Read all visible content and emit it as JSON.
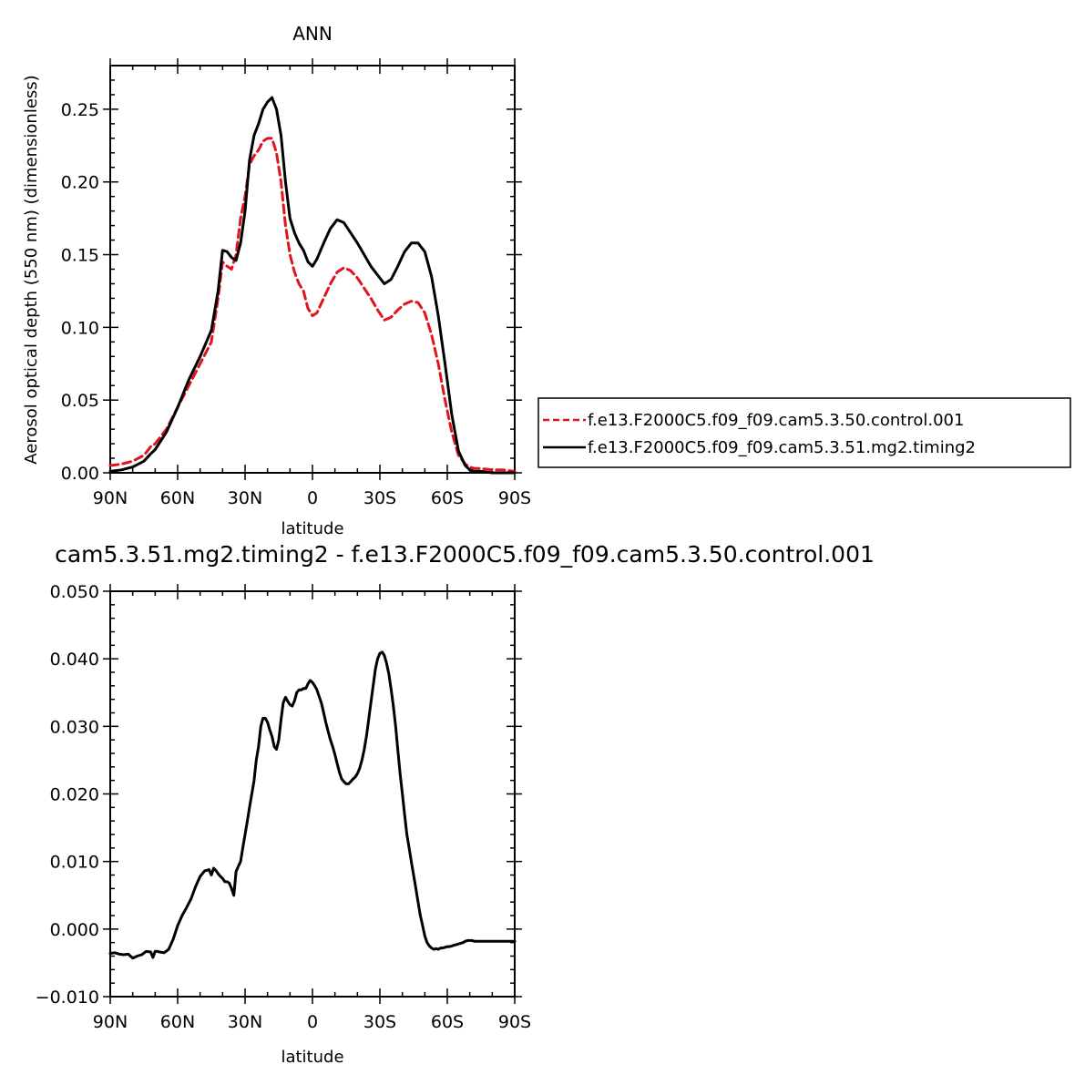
{
  "chart_data": [
    {
      "type": "line",
      "title": "ANN",
      "xlabel": "latitude",
      "ylabel": "Aerosol optical depth (550 nm) (dimensionless)",
      "xlim": [
        90,
        -90
      ],
      "ylim": [
        0.0,
        0.28
      ],
      "xticks": [
        {
          "value": 90,
          "label": "90N"
        },
        {
          "value": 60,
          "label": "60N"
        },
        {
          "value": 30,
          "label": "30N"
        },
        {
          "value": 0,
          "label": "0"
        },
        {
          "value": -30,
          "label": "30S"
        },
        {
          "value": -60,
          "label": "60S"
        },
        {
          "value": -90,
          "label": "90S"
        }
      ],
      "yticks": [
        {
          "value": 0.0,
          "label": "0.00"
        },
        {
          "value": 0.05,
          "label": "0.05"
        },
        {
          "value": 0.1,
          "label": "0.10"
        },
        {
          "value": 0.15,
          "label": "0.15"
        },
        {
          "value": 0.2,
          "label": "0.20"
        },
        {
          "value": 0.25,
          "label": "0.25"
        }
      ],
      "legend_position": "right",
      "series": [
        {
          "name": "f.e13.F2000C5.f09_f09.cam5.3.50.control.001",
          "color": "#e0141e",
          "style": "dashed",
          "x": [
            90,
            85,
            80,
            75,
            72,
            70,
            65,
            60,
            55,
            50,
            45,
            42,
            40,
            38,
            36,
            34,
            32,
            30,
            28,
            26,
            24,
            22,
            20,
            18,
            16,
            14,
            12,
            10,
            8,
            6,
            4,
            2,
            0,
            -2,
            -5,
            -8,
            -11,
            -14,
            -17,
            -20,
            -23,
            -26,
            -29,
            -32,
            -35,
            -38,
            -41,
            -44,
            -47,
            -50,
            -53,
            -56,
            -59,
            -62,
            -65,
            -68,
            -70,
            -72,
            -75,
            -80,
            -85,
            -90
          ],
          "y": [
            0.005,
            0.006,
            0.008,
            0.012,
            0.018,
            0.02,
            0.03,
            0.045,
            0.06,
            0.075,
            0.09,
            0.12,
            0.145,
            0.142,
            0.14,
            0.15,
            0.175,
            0.19,
            0.212,
            0.218,
            0.222,
            0.228,
            0.23,
            0.23,
            0.22,
            0.2,
            0.17,
            0.15,
            0.138,
            0.13,
            0.125,
            0.113,
            0.108,
            0.11,
            0.12,
            0.13,
            0.138,
            0.141,
            0.139,
            0.134,
            0.127,
            0.12,
            0.112,
            0.105,
            0.107,
            0.112,
            0.116,
            0.118,
            0.117,
            0.11,
            0.095,
            0.075,
            0.05,
            0.028,
            0.012,
            0.006,
            0.004,
            0.003,
            0.003,
            0.002,
            0.002,
            0.001
          ]
        },
        {
          "name": "f.e13.F2000C5.f09_f09.cam5.3.51.mg2.timing2",
          "color": "#000000",
          "style": "solid",
          "x": [
            90,
            85,
            80,
            75,
            72,
            70,
            65,
            60,
            55,
            50,
            45,
            42,
            40,
            38,
            36,
            34,
            32,
            30,
            28,
            26,
            24,
            22,
            20,
            18,
            16,
            14,
            12,
            10,
            8,
            6,
            4,
            2,
            0,
            -2,
            -5,
            -8,
            -11,
            -14,
            -17,
            -20,
            -23,
            -26,
            -29,
            -32,
            -35,
            -38,
            -41,
            -44,
            -47,
            -50,
            -53,
            -56,
            -59,
            -62,
            -65,
            -68,
            -70,
            -72,
            -75,
            -80,
            -85,
            -90
          ],
          "y": [
            0.001,
            0.002,
            0.004,
            0.008,
            0.013,
            0.016,
            0.028,
            0.045,
            0.064,
            0.08,
            0.098,
            0.125,
            0.153,
            0.152,
            0.148,
            0.146,
            0.158,
            0.18,
            0.215,
            0.232,
            0.24,
            0.25,
            0.255,
            0.258,
            0.25,
            0.232,
            0.2,
            0.175,
            0.165,
            0.158,
            0.153,
            0.145,
            0.142,
            0.147,
            0.158,
            0.168,
            0.174,
            0.172,
            0.165,
            0.158,
            0.15,
            0.142,
            0.136,
            0.13,
            0.133,
            0.142,
            0.152,
            0.158,
            0.158,
            0.152,
            0.135,
            0.108,
            0.075,
            0.04,
            0.015,
            0.005,
            0.002,
            0.001,
            0.001,
            0.0,
            0.0,
            0.0
          ]
        }
      ]
    },
    {
      "type": "line",
      "title": "cam5.3.51.mg2.timing2 - f.e13.F2000C5.f09_f09.cam5.3.50.control.001",
      "xlabel": "latitude",
      "ylabel": "",
      "xlim": [
        90,
        -90
      ],
      "ylim": [
        -0.01,
        0.05
      ],
      "xticks": [
        {
          "value": 90,
          "label": "90N"
        },
        {
          "value": 60,
          "label": "60N"
        },
        {
          "value": 30,
          "label": "30N"
        },
        {
          "value": 0,
          "label": "0"
        },
        {
          "value": -30,
          "label": "30S"
        },
        {
          "value": -60,
          "label": "60S"
        },
        {
          "value": -90,
          "label": "90S"
        }
      ],
      "yticks": [
        {
          "value": -0.01,
          "label": "−0.010"
        },
        {
          "value": 0.0,
          "label": "0.000"
        },
        {
          "value": 0.01,
          "label": "0.010"
        },
        {
          "value": 0.02,
          "label": "0.020"
        },
        {
          "value": 0.03,
          "label": "0.030"
        },
        {
          "value": 0.04,
          "label": "0.040"
        },
        {
          "value": 0.05,
          "label": "0.050"
        }
      ],
      "series": [
        {
          "name": "",
          "color": "#000000",
          "style": "solid",
          "x": [
            90,
            88,
            86,
            84,
            82,
            80,
            78,
            76,
            74,
            72,
            71,
            70,
            69,
            68,
            66,
            64,
            62,
            60,
            58,
            56,
            54,
            52,
            50,
            48,
            46,
            45,
            44,
            43,
            42,
            41,
            40,
            39,
            38,
            37,
            36,
            35,
            34,
            33,
            32,
            31,
            30,
            29,
            28,
            27,
            26,
            25,
            24,
            23,
            22,
            21,
            20,
            19,
            18,
            17,
            16,
            15,
            14,
            13,
            12,
            11,
            10,
            9,
            8,
            7,
            6,
            5,
            4,
            3,
            2,
            1,
            0,
            -1,
            -2,
            -3,
            -4,
            -5,
            -6,
            -7,
            -8,
            -9,
            -10,
            -11,
            -12,
            -13,
            -14,
            -15,
            -16,
            -17,
            -18,
            -19,
            -20,
            -21,
            -22,
            -23,
            -24,
            -25,
            -26,
            -27,
            -28,
            -29,
            -30,
            -31,
            -32,
            -33,
            -34,
            -35,
            -36,
            -37,
            -38,
            -39,
            -40,
            -41,
            -42,
            -43,
            -44,
            -45,
            -46,
            -47,
            -48,
            -49,
            -50,
            -51,
            -52,
            -53,
            -54,
            -55,
            -56,
            -57,
            -58,
            -59,
            -60,
            -61,
            -62,
            -63,
            -64,
            -65,
            -66,
            -67,
            -68,
            -69,
            -70,
            -71,
            -72,
            -74,
            -76,
            -78,
            -80,
            -82,
            -84,
            -86,
            -88,
            -90
          ],
          "y": [
            -0.0036,
            -0.0035,
            -0.0037,
            -0.0038,
            -0.0037,
            -0.0043,
            -0.004,
            -0.0038,
            -0.0033,
            -0.0034,
            -0.0042,
            -0.0033,
            -0.0033,
            -0.0034,
            -0.0035,
            -0.003,
            -0.0015,
            0.0005,
            0.002,
            0.0032,
            0.0045,
            0.0063,
            0.0078,
            0.0086,
            0.0088,
            0.008,
            0.009,
            0.0087,
            0.0082,
            0.0078,
            0.0075,
            0.007,
            0.007,
            0.0068,
            0.006,
            0.005,
            0.0085,
            0.0093,
            0.01,
            0.012,
            0.014,
            0.016,
            0.018,
            0.02,
            0.022,
            0.025,
            0.027,
            0.03,
            0.0312,
            0.0312,
            0.0306,
            0.0295,
            0.0285,
            0.027,
            0.0266,
            0.028,
            0.031,
            0.0335,
            0.0343,
            0.0337,
            0.0332,
            0.033,
            0.0338,
            0.035,
            0.0354,
            0.0354,
            0.0356,
            0.0356,
            0.0363,
            0.0368,
            0.0365,
            0.036,
            0.0354,
            0.0344,
            0.0334,
            0.032,
            0.0305,
            0.0292,
            0.028,
            0.027,
            0.0258,
            0.0245,
            0.0232,
            0.0222,
            0.0218,
            0.0215,
            0.0215,
            0.0218,
            0.0222,
            0.0225,
            0.023,
            0.0238,
            0.025,
            0.0265,
            0.0285,
            0.031,
            0.0335,
            0.036,
            0.0385,
            0.04,
            0.0408,
            0.041,
            0.0405,
            0.0393,
            0.0377,
            0.0355,
            0.033,
            0.03,
            0.0265,
            0.023,
            0.02,
            0.017,
            0.014,
            0.012,
            0.01,
            0.008,
            0.006,
            0.004,
            0.002,
            0.0005,
            -0.001,
            -0.002,
            -0.0025,
            -0.0028,
            -0.003,
            -0.0029,
            -0.003,
            -0.0028,
            -0.0028,
            -0.0027,
            -0.0026,
            -0.0026,
            -0.0025,
            -0.0024,
            -0.0023,
            -0.0022,
            -0.0021,
            -0.002,
            -0.0018,
            -0.0017,
            -0.0017,
            -0.0017,
            -0.0018,
            -0.0018,
            -0.0018,
            -0.0018,
            -0.0018,
            -0.0018,
            -0.0018,
            -0.0018,
            -0.0018,
            -0.0018
          ]
        }
      ]
    }
  ],
  "colors": {
    "control": "#e0141e",
    "mg2": "#000000"
  }
}
